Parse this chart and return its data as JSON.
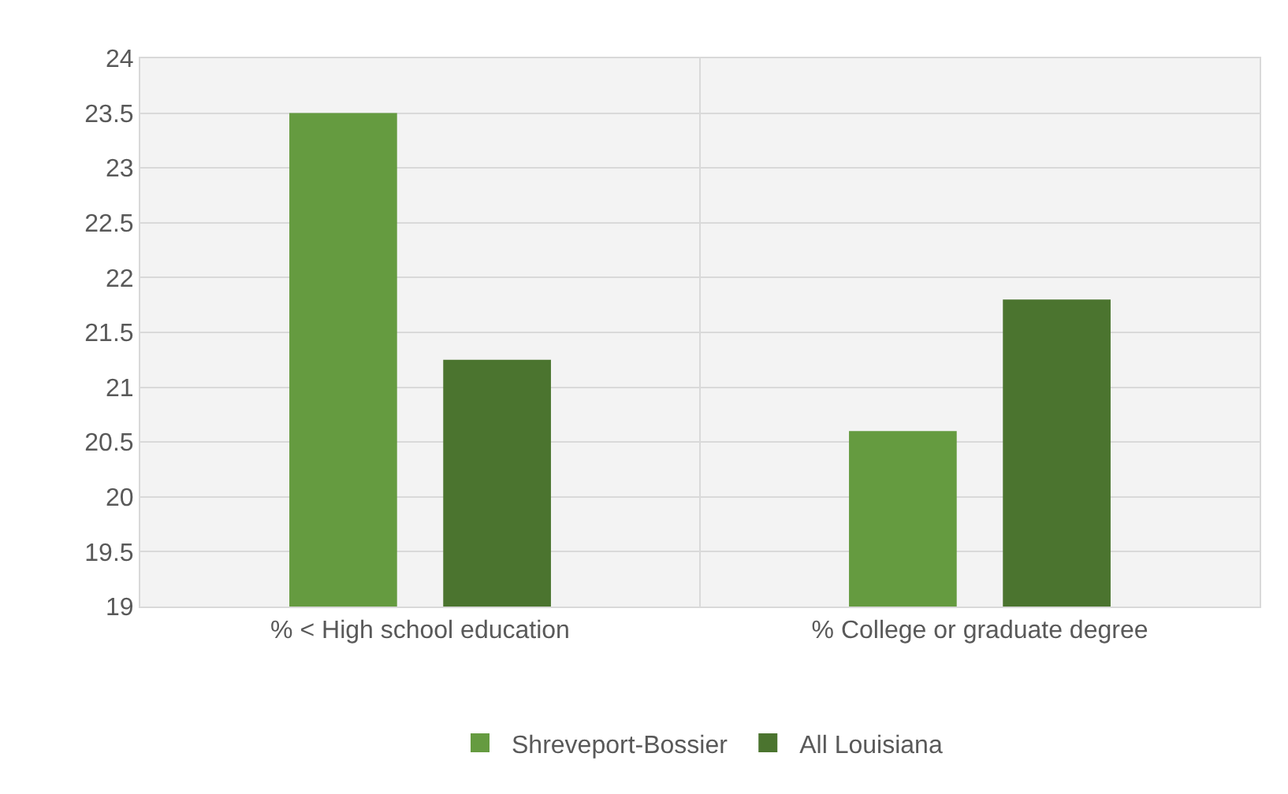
{
  "chart_data": {
    "type": "bar",
    "categories": [
      "% < High school education",
      "% College or graduate degree"
    ],
    "series": [
      {
        "name": "Shreveport-Bossier",
        "color": "#659b40",
        "values": [
          23.5,
          20.6
        ]
      },
      {
        "name": "All Louisiana",
        "color": "#4b742f",
        "values": [
          21.25,
          21.8
        ]
      }
    ],
    "ylim": [
      19,
      24
    ],
    "yticks": [
      19,
      19.5,
      20,
      20.5,
      21,
      21.5,
      22,
      22.5,
      23,
      23.5,
      24
    ],
    "grid": true,
    "legend": "bottom"
  }
}
